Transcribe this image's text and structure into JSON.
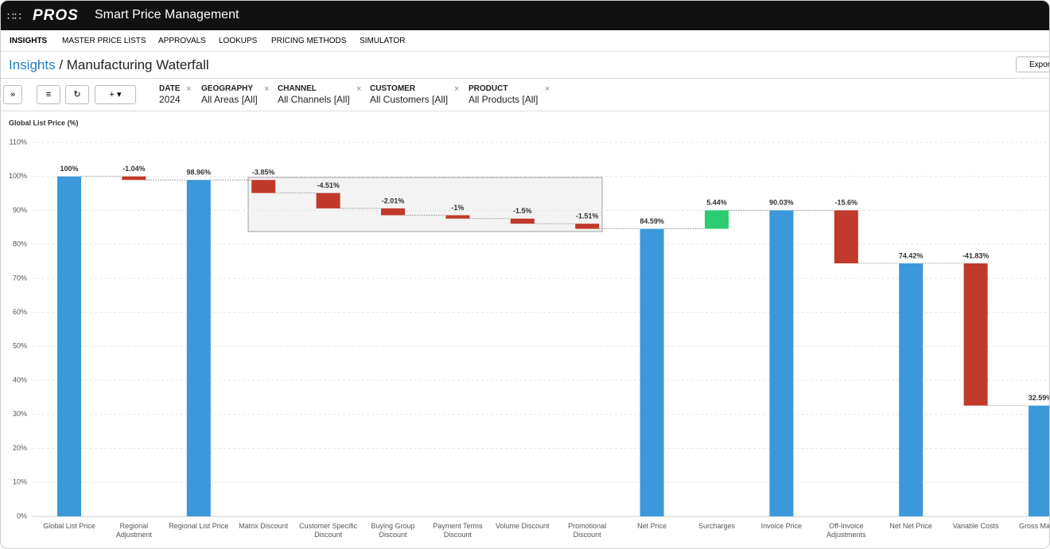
{
  "header": {
    "brand": "PROS",
    "title": "Smart Price Management"
  },
  "nav": [
    "INSIGHTS",
    "MASTER PRICE LISTS",
    "APPROVALS",
    "LOOKUPS",
    "PRICING METHODS",
    "SIMULATOR"
  ],
  "breadcrumb": {
    "parent": "Insights",
    "current": "/ Manufacturing Waterfall"
  },
  "export_button": "Export",
  "filters": [
    {
      "name": "DATE",
      "value": "2024"
    },
    {
      "name": "GEOGRAPHY",
      "value": "All Areas [All]"
    },
    {
      "name": "CHANNEL",
      "value": "All Channels [All]"
    },
    {
      "name": "CUSTOMER",
      "value": "All Customers [All]"
    },
    {
      "name": "PRODUCT",
      "value": "All Products [All]"
    }
  ],
  "chart_data": {
    "type": "waterfall",
    "y_label": "Global List Price (%)",
    "categories": [
      "Global List Price",
      "Regional Adjustment",
      "Regional List Price",
      "Matrix Discount",
      "Customer Specific Discount",
      "Buying Group Discount",
      "Payment Terms Discount",
      "Volume Discount",
      "Promotional Discount",
      "Net Price",
      "Surcharges",
      "Invoice Price",
      "Off-Invoice Adjustments",
      "Net Net Price",
      "Variable Costs",
      "Gross Margin"
    ],
    "values": [
      100,
      -1.04,
      98.96,
      -3.85,
      -4.51,
      -2.01,
      -1,
      -1.5,
      -1.51,
      84.59,
      5.44,
      90.03,
      -15.6,
      74.42,
      -41.83,
      32.59
    ],
    "value_labels": [
      "100%",
      "-1.04%",
      "98.96%",
      "-3.85%",
      "-4.51%",
      "-2.01%",
      "-1%",
      "-1.5%",
      "-1.51%",
      "84.59%",
      "5.44%",
      "90.03%",
      "-15.6%",
      "74.42%",
      "-41.83%",
      "32.59%"
    ],
    "measure": [
      "absolute",
      "relative",
      "absolute",
      "relative",
      "relative",
      "relative",
      "relative",
      "relative",
      "relative",
      "absolute",
      "relative",
      "absolute",
      "relative",
      "absolute",
      "relative",
      "absolute"
    ],
    "total_color": "#3a98db",
    "decrease_color": "#c0392b",
    "increase_color": "#2ecc71",
    "ylim": [
      0,
      110
    ],
    "yticks": [
      {
        "value": 0,
        "label": "0%"
      },
      {
        "value": 10,
        "label": "10%"
      },
      {
        "value": 20,
        "label": "20%"
      },
      {
        "value": 30,
        "label": "30%"
      },
      {
        "value": 40,
        "label": "40%"
      },
      {
        "value": 50,
        "label": "50%"
      },
      {
        "value": 60,
        "label": "60%"
      },
      {
        "value": 70,
        "label": "70%"
      },
      {
        "value": 80,
        "label": "80%"
      },
      {
        "value": 90,
        "label": "90%"
      },
      {
        "value": 100,
        "label": "100%"
      },
      {
        "value": 110,
        "label": "110%"
      }
    ],
    "grid": true
  }
}
